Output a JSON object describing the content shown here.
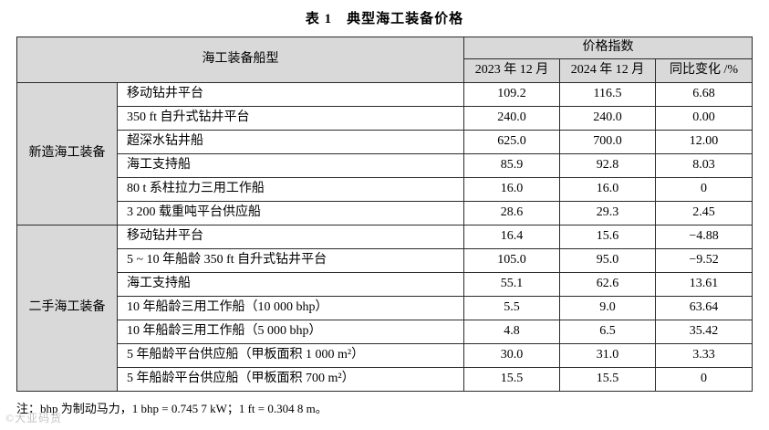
{
  "title": "表 1　典型海工装备价格",
  "table": {
    "header": {
      "ship_type": "海工装备船型",
      "price_index": "价格指数",
      "dec2023": "2023 年 12 月",
      "dec2024": "2024 年 12 月",
      "yoy_change": "同比变化 /%"
    },
    "groups": [
      {
        "name": "新造海工装备",
        "rows": [
          {
            "item": "移动钻井平台",
            "v2023": "109.2",
            "v2024": "116.5",
            "change": "6.68"
          },
          {
            "item": "350 ft 自升式钻井平台",
            "v2023": "240.0",
            "v2024": "240.0",
            "change": "0.00"
          },
          {
            "item": "超深水钻井船",
            "v2023": "625.0",
            "v2024": "700.0",
            "change": "12.00"
          },
          {
            "item": "海工支持船",
            "v2023": "85.9",
            "v2024": "92.8",
            "change": "8.03"
          },
          {
            "item": "80 t 系柱拉力三用工作船",
            "v2023": "16.0",
            "v2024": "16.0",
            "change": "0"
          },
          {
            "item": "3 200 载重吨平台供应船",
            "v2023": "28.6",
            "v2024": "29.3",
            "change": "2.45"
          }
        ]
      },
      {
        "name": "二手海工装备",
        "rows": [
          {
            "item": "移动钻井平台",
            "v2023": "16.4",
            "v2024": "15.6",
            "change": "−4.88"
          },
          {
            "item": "5 ~ 10 年船龄 350 ft 自升式钻井平台",
            "v2023": "105.0",
            "v2024": "95.0",
            "change": "−9.52"
          },
          {
            "item": "海工支持船",
            "v2023": "55.1",
            "v2024": "62.6",
            "change": "13.61"
          },
          {
            "item": "10 年船龄三用工作船（10 000 bhp）",
            "v2023": "5.5",
            "v2024": "9.0",
            "change": "63.64"
          },
          {
            "item": "10 年船龄三用工作船（5 000 bhp）",
            "v2023": "4.8",
            "v2024": "6.5",
            "change": "35.42"
          },
          {
            "item": "5 年船龄平台供应船（甲板面积 1 000 m²）",
            "v2023": "30.0",
            "v2024": "31.0",
            "change": "3.33"
          },
          {
            "item": "5 年船龄平台供应船（甲板面积 700 m²）",
            "v2023": "15.5",
            "v2024": "15.5",
            "change": "0"
          }
        ]
      }
    ]
  },
  "note": "注：bhp 为制动马力，1 bhp = 0.745 7 kW；1 ft = 0.304 8 m。",
  "watermark": "©大亚码货",
  "colors": {
    "header_bg": "#d9d9d9",
    "border": "#2b2b2b"
  }
}
